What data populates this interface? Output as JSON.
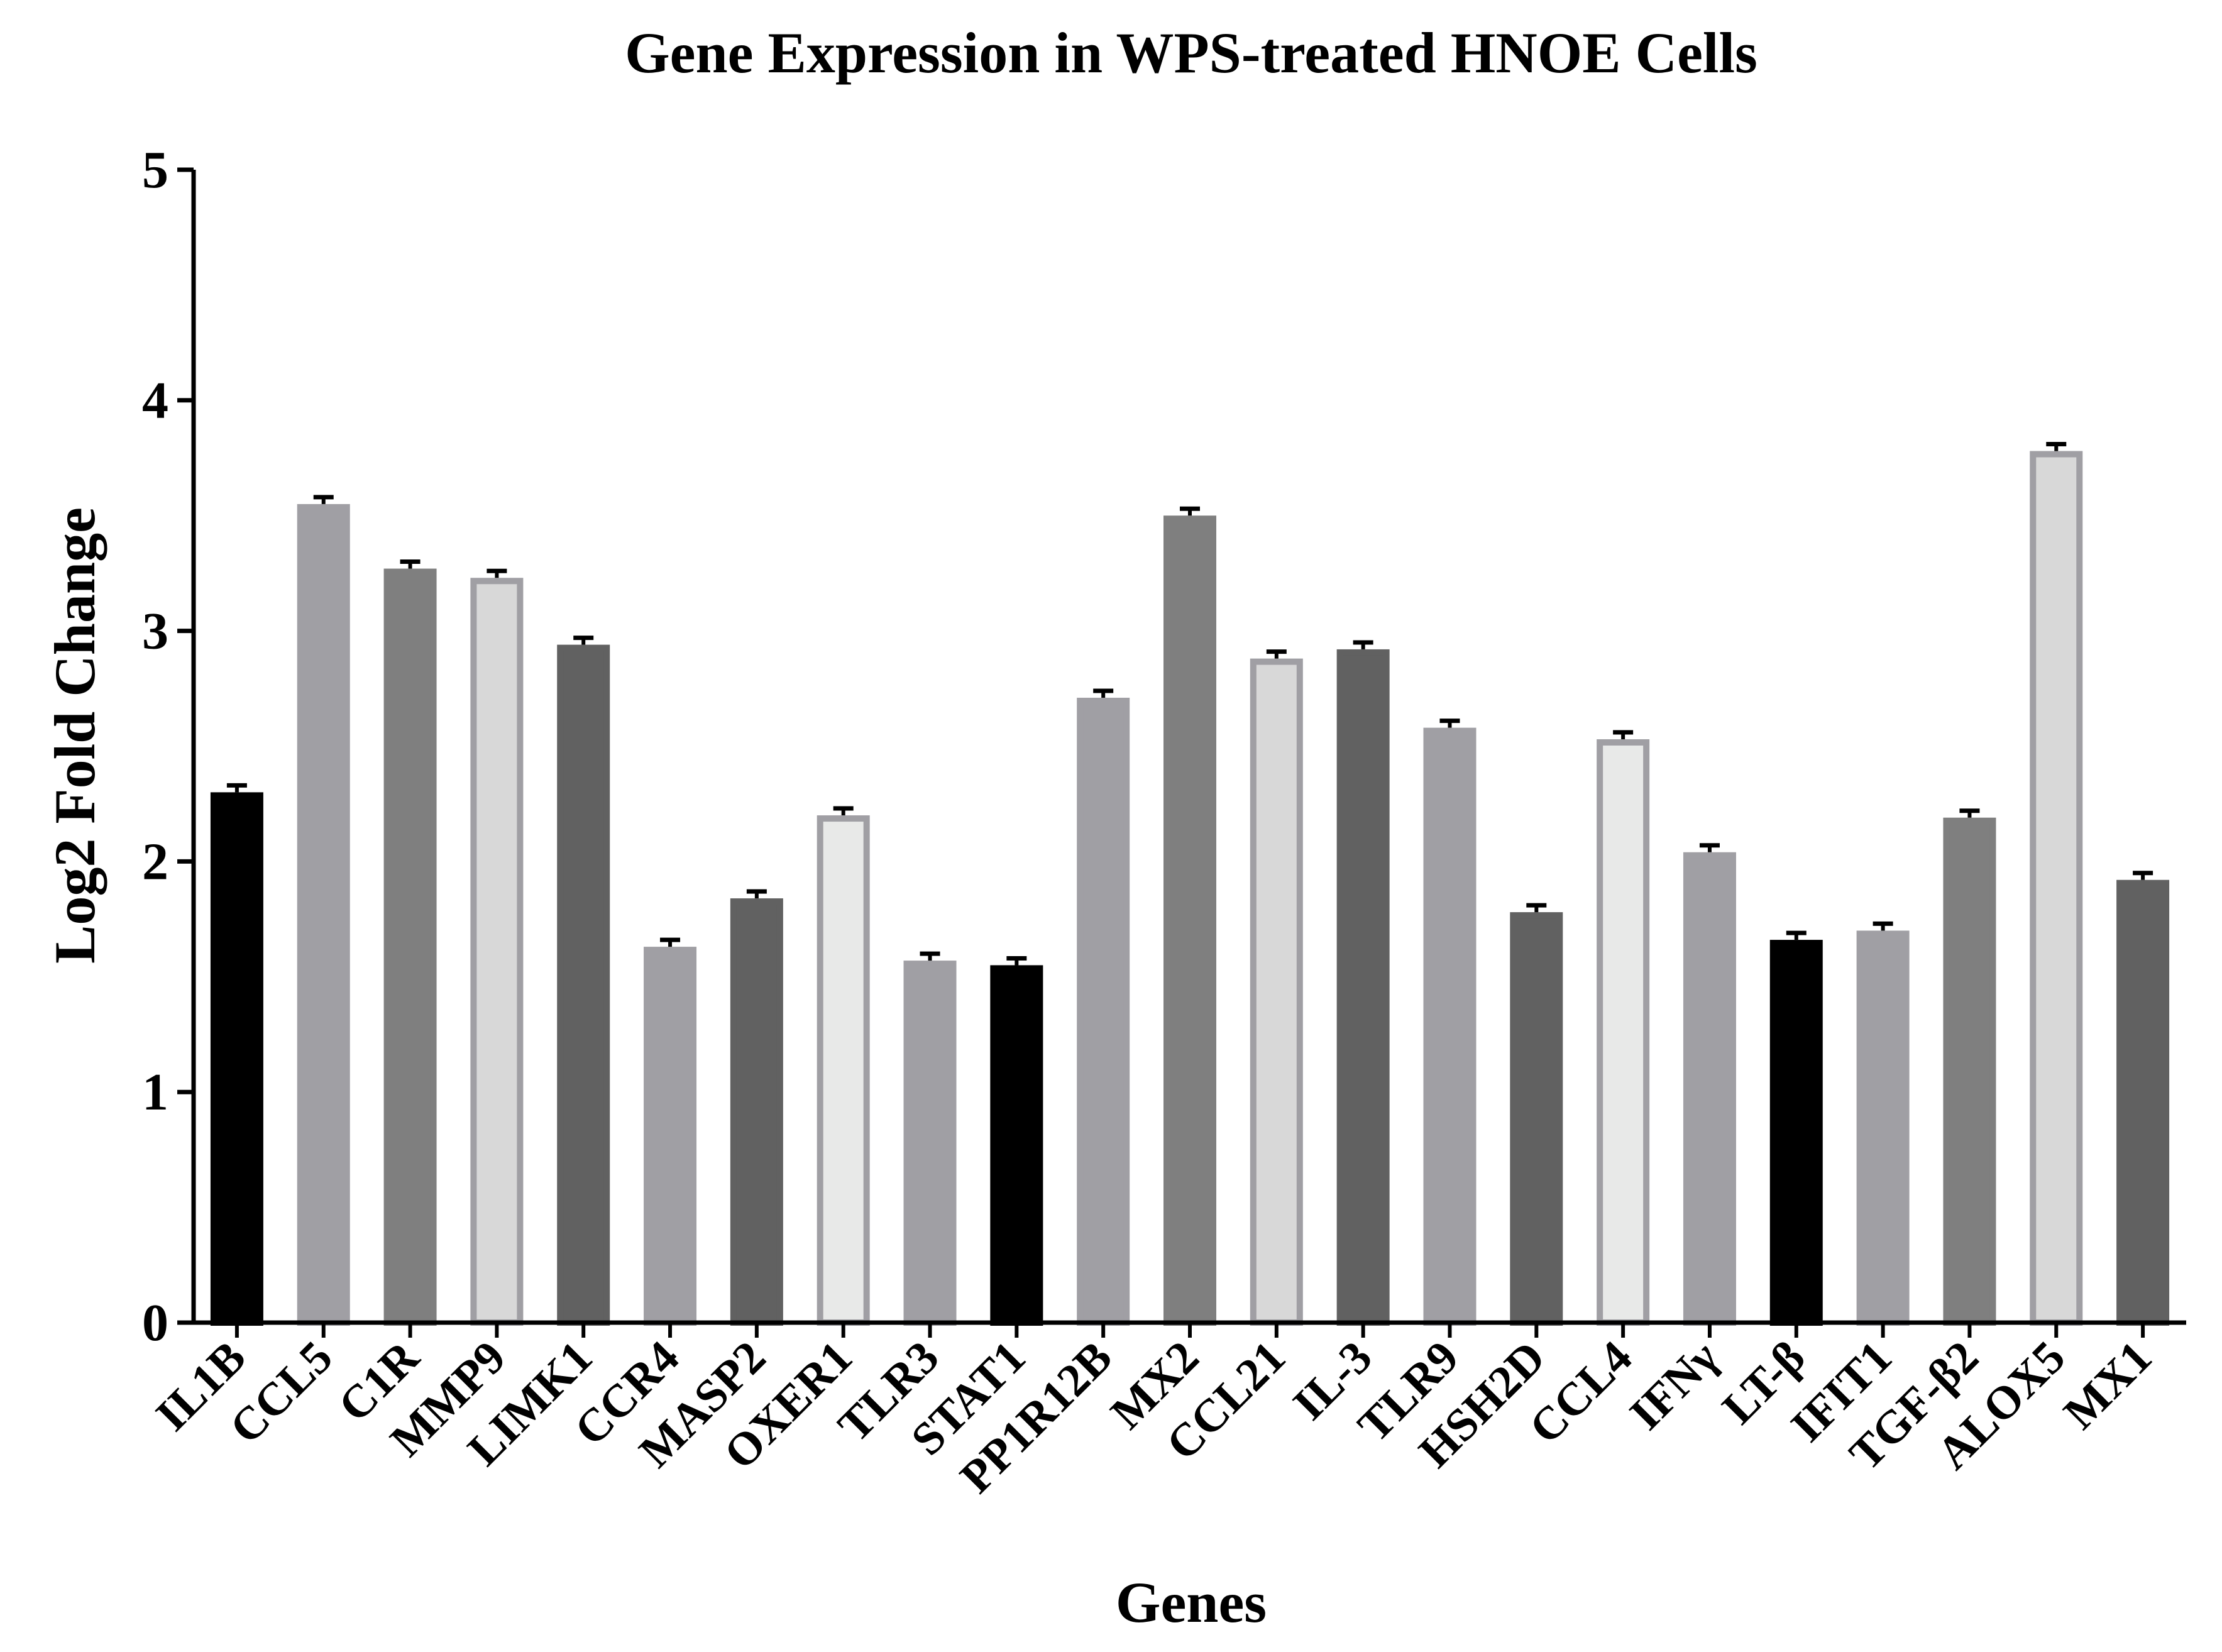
{
  "chart_data": {
    "type": "bar",
    "title": "Gene Expression in WPS-treated HNOE Cells",
    "xlabel": "Genes",
    "ylabel": "Log2 Fold Change",
    "ylim": [
      0,
      5
    ],
    "yticks": [
      "0",
      "1",
      "2",
      "3",
      "4",
      "5"
    ],
    "grid": false,
    "legend": "none",
    "categories": [
      "IL1B",
      "CCL5",
      "C1R",
      "MMP9",
      "LIMK1",
      "CCR4",
      "MASP2",
      "OXER1",
      "TLR3",
      "STAT1",
      "PP1R12B",
      "MX2",
      "CCL21",
      "IL-3",
      "TLR9",
      "HSH2D",
      "CCL4",
      "IFNγ",
      "LT-β",
      "IFIT1",
      "TGF-β2",
      "ALOX5",
      "MX1"
    ],
    "values": [
      2.3,
      3.55,
      3.27,
      3.23,
      2.94,
      1.63,
      1.84,
      2.2,
      1.57,
      1.55,
      2.71,
      3.5,
      2.88,
      2.92,
      2.58,
      1.78,
      2.53,
      2.04,
      1.66,
      1.7,
      2.19,
      3.78,
      1.92
    ],
    "errors": [
      0.03,
      0.03,
      0.03,
      0.03,
      0.03,
      0.03,
      0.03,
      0.03,
      0.03,
      0.03,
      0.03,
      0.03,
      0.03,
      0.03,
      0.03,
      0.03,
      0.03,
      0.03,
      0.03,
      0.03,
      0.03,
      0.03,
      0.03
    ],
    "bar_fills": [
      "#000000",
      "#a09fa4",
      "#7f7f7f",
      "#d8d8d8",
      "#616161",
      "#a09fa4",
      "#616161",
      "#e8e9e8",
      "#a09fa4",
      "#000000",
      "#a09fa4",
      "#7f7f7f",
      "#d8d8d8",
      "#616161",
      "#a09fa4",
      "#616161",
      "#e8e9e8",
      "#a09fa4",
      "#000000",
      "#a09fa4",
      "#7f7f7f",
      "#d8d8d8",
      "#616161"
    ],
    "bar_outlines": [
      "#000000",
      "#a09fa4",
      "#7f7f7f",
      "#a09fa4",
      "#616161",
      "#a09fa4",
      "#616161",
      "#a09fa4",
      "#a09fa4",
      "#000000",
      "#a09fa4",
      "#7f7f7f",
      "#a09fa4",
      "#616161",
      "#a09fa4",
      "#616161",
      "#a09fa4",
      "#a09fa4",
      "#000000",
      "#a09fa4",
      "#7f7f7f",
      "#a09fa4",
      "#616161"
    ]
  }
}
